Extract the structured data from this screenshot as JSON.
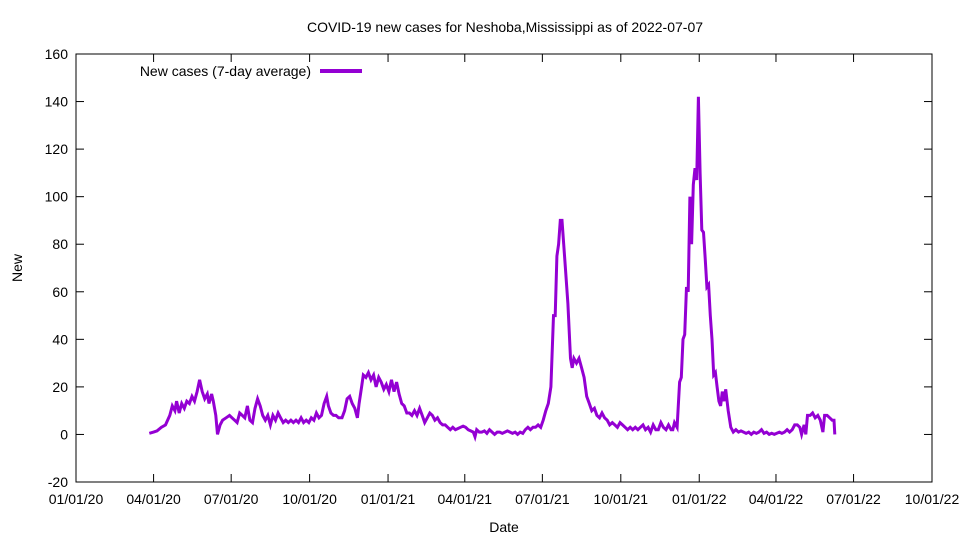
{
  "chart_data": {
    "type": "line",
    "title": "COVID-19 new cases for Neshoba,Mississippi as of 2022-07-07",
    "xlabel": "Date",
    "ylabel": "New",
    "xlim": [
      "2020-01-01",
      "2022-10-01"
    ],
    "ylim": [
      -20,
      160
    ],
    "x_ticks": [
      "2020-01-01",
      "2020-04-01",
      "2020-07-01",
      "2020-10-01",
      "2021-01-01",
      "2021-04-01",
      "2021-07-01",
      "2021-10-01",
      "2022-01-01",
      "2022-04-01",
      "2022-07-01",
      "2022-10-01"
    ],
    "x_tick_labels": [
      "01/01/20",
      "04/01/20",
      "07/01/20",
      "10/01/20",
      "01/01/21",
      "04/01/21",
      "07/01/21",
      "10/01/21",
      "01/01/22",
      "04/01/22",
      "07/01/22",
      "10/01/22"
    ],
    "y_ticks": [
      -20,
      0,
      20,
      40,
      60,
      80,
      100,
      120,
      140,
      160
    ],
    "y_tick_labels": [
      "-20",
      "0",
      "20",
      "40",
      "60",
      "80",
      "100",
      "120",
      "140",
      "160"
    ],
    "grid": false,
    "legend_position": "top-left",
    "series": [
      {
        "name": "New cases (7-day average)",
        "color": "#9400d3",
        "points": [
          [
            "2020-03-27",
            0.5
          ],
          [
            "2020-04-01",
            1
          ],
          [
            "2020-04-05",
            1.5
          ],
          [
            "2020-04-10",
            3
          ],
          [
            "2020-04-15",
            4
          ],
          [
            "2020-04-20",
            8
          ],
          [
            "2020-04-23",
            12
          ],
          [
            "2020-04-26",
            10
          ],
          [
            "2020-04-28",
            14
          ],
          [
            "2020-05-01",
            9
          ],
          [
            "2020-05-04",
            13
          ],
          [
            "2020-05-07",
            11
          ],
          [
            "2020-05-10",
            14
          ],
          [
            "2020-05-13",
            13
          ],
          [
            "2020-05-16",
            16
          ],
          [
            "2020-05-19",
            14
          ],
          [
            "2020-05-22",
            18
          ],
          [
            "2020-05-25",
            23
          ],
          [
            "2020-05-28",
            18
          ],
          [
            "2020-05-31",
            15
          ],
          [
            "2020-06-03",
            17
          ],
          [
            "2020-06-05",
            13
          ],
          [
            "2020-06-08",
            17
          ],
          [
            "2020-06-10",
            14
          ],
          [
            "2020-06-13",
            8
          ],
          [
            "2020-06-15",
            0
          ],
          [
            "2020-06-18",
            4
          ],
          [
            "2020-06-21",
            6
          ],
          [
            "2020-06-25",
            7
          ],
          [
            "2020-06-29",
            8
          ],
          [
            "2020-07-02",
            7
          ],
          [
            "2020-07-05",
            6
          ],
          [
            "2020-07-08",
            5
          ],
          [
            "2020-07-11",
            9
          ],
          [
            "2020-07-14",
            8
          ],
          [
            "2020-07-17",
            7
          ],
          [
            "2020-07-20",
            12
          ],
          [
            "2020-07-23",
            6
          ],
          [
            "2020-07-26",
            5
          ],
          [
            "2020-07-29",
            11
          ],
          [
            "2020-08-01",
            15
          ],
          [
            "2020-08-04",
            12
          ],
          [
            "2020-08-07",
            8
          ],
          [
            "2020-08-10",
            6
          ],
          [
            "2020-08-13",
            8
          ],
          [
            "2020-08-16",
            4
          ],
          [
            "2020-08-19",
            8
          ],
          [
            "2020-08-22",
            6
          ],
          [
            "2020-08-25",
            9
          ],
          [
            "2020-08-28",
            7
          ],
          [
            "2020-08-31",
            5
          ],
          [
            "2020-09-03",
            6
          ],
          [
            "2020-09-06",
            5
          ],
          [
            "2020-09-09",
            6
          ],
          [
            "2020-09-12",
            5
          ],
          [
            "2020-09-15",
            6
          ],
          [
            "2020-09-18",
            5
          ],
          [
            "2020-09-21",
            7
          ],
          [
            "2020-09-24",
            5
          ],
          [
            "2020-09-27",
            6
          ],
          [
            "2020-09-30",
            5
          ],
          [
            "2020-10-03",
            7
          ],
          [
            "2020-10-06",
            6
          ],
          [
            "2020-10-09",
            9
          ],
          [
            "2020-10-12",
            7
          ],
          [
            "2020-10-15",
            8
          ],
          [
            "2020-10-18",
            13
          ],
          [
            "2020-10-21",
            16
          ],
          [
            "2020-10-23",
            12
          ],
          [
            "2020-10-26",
            9
          ],
          [
            "2020-10-29",
            8
          ],
          [
            "2020-11-01",
            8
          ],
          [
            "2020-11-04",
            7
          ],
          [
            "2020-11-08",
            7
          ],
          [
            "2020-11-11",
            10
          ],
          [
            "2020-11-14",
            15
          ],
          [
            "2020-11-17",
            16
          ],
          [
            "2020-11-20",
            13
          ],
          [
            "2020-11-23",
            11
          ],
          [
            "2020-11-26",
            7
          ],
          [
            "2020-11-28",
            13
          ],
          [
            "2020-12-01",
            20
          ],
          [
            "2020-12-03",
            25
          ],
          [
            "2020-12-06",
            24
          ],
          [
            "2020-12-09",
            26
          ],
          [
            "2020-12-12",
            23
          ],
          [
            "2020-12-15",
            25
          ],
          [
            "2020-12-18",
            20
          ],
          [
            "2020-12-21",
            24
          ],
          [
            "2020-12-24",
            22
          ],
          [
            "2020-12-27",
            19
          ],
          [
            "2020-12-30",
            21
          ],
          [
            "2021-01-02",
            18
          ],
          [
            "2021-01-05",
            23
          ],
          [
            "2021-01-08",
            18
          ],
          [
            "2021-01-11",
            22
          ],
          [
            "2021-01-14",
            17
          ],
          [
            "2021-01-17",
            13
          ],
          [
            "2021-01-20",
            12
          ],
          [
            "2021-01-23",
            9
          ],
          [
            "2021-01-26",
            9
          ],
          [
            "2021-01-29",
            8
          ],
          [
            "2021-02-01",
            10
          ],
          [
            "2021-02-04",
            8
          ],
          [
            "2021-02-07",
            11
          ],
          [
            "2021-02-10",
            8
          ],
          [
            "2021-02-13",
            5
          ],
          [
            "2021-02-16",
            7
          ],
          [
            "2021-02-19",
            9
          ],
          [
            "2021-02-22",
            8
          ],
          [
            "2021-02-25",
            6
          ],
          [
            "2021-02-28",
            7
          ],
          [
            "2021-03-03",
            5
          ],
          [
            "2021-03-06",
            4
          ],
          [
            "2021-03-09",
            4
          ],
          [
            "2021-03-12",
            3
          ],
          [
            "2021-03-15",
            2
          ],
          [
            "2021-03-18",
            3
          ],
          [
            "2021-03-21",
            2
          ],
          [
            "2021-03-24",
            2.5
          ],
          [
            "2021-03-27",
            3
          ],
          [
            "2021-03-30",
            3.5
          ],
          [
            "2021-04-02",
            3
          ],
          [
            "2021-04-05",
            2
          ],
          [
            "2021-04-08",
            1.5
          ],
          [
            "2021-04-11",
            1
          ],
          [
            "2021-04-13",
            -1
          ],
          [
            "2021-04-15",
            2
          ],
          [
            "2021-04-18",
            1
          ],
          [
            "2021-04-21",
            1
          ],
          [
            "2021-04-24",
            1.5
          ],
          [
            "2021-04-27",
            0.5
          ],
          [
            "2021-04-30",
            2
          ],
          [
            "2021-05-03",
            1
          ],
          [
            "2021-05-06",
            0
          ],
          [
            "2021-05-09",
            1
          ],
          [
            "2021-05-12",
            1
          ],
          [
            "2021-05-15",
            0.5
          ],
          [
            "2021-05-18",
            1
          ],
          [
            "2021-05-21",
            1.5
          ],
          [
            "2021-05-24",
            1
          ],
          [
            "2021-05-27",
            0.5
          ],
          [
            "2021-05-30",
            1
          ],
          [
            "2021-06-02",
            0
          ],
          [
            "2021-06-05",
            1
          ],
          [
            "2021-06-08",
            0.5
          ],
          [
            "2021-06-11",
            2
          ],
          [
            "2021-06-14",
            3
          ],
          [
            "2021-06-17",
            2
          ],
          [
            "2021-06-20",
            3
          ],
          [
            "2021-06-23",
            3
          ],
          [
            "2021-06-26",
            4
          ],
          [
            "2021-06-29",
            3
          ],
          [
            "2021-07-02",
            6
          ],
          [
            "2021-07-05",
            10
          ],
          [
            "2021-07-08",
            13
          ],
          [
            "2021-07-11",
            20
          ],
          [
            "2021-07-14",
            50
          ],
          [
            "2021-07-16",
            50
          ],
          [
            "2021-07-18",
            75
          ],
          [
            "2021-07-20",
            80
          ],
          [
            "2021-07-22",
            90
          ],
          [
            "2021-07-24",
            90
          ],
          [
            "2021-07-26",
            80
          ],
          [
            "2021-07-28",
            70
          ],
          [
            "2021-07-31",
            55
          ],
          [
            "2021-08-03",
            32
          ],
          [
            "2021-08-05",
            28
          ],
          [
            "2021-08-07",
            32
          ],
          [
            "2021-08-10",
            30
          ],
          [
            "2021-08-13",
            32
          ],
          [
            "2021-08-16",
            28
          ],
          [
            "2021-08-19",
            24
          ],
          [
            "2021-08-22",
            16
          ],
          [
            "2021-08-25",
            13
          ],
          [
            "2021-08-28",
            10
          ],
          [
            "2021-08-31",
            11
          ],
          [
            "2021-09-03",
            8
          ],
          [
            "2021-09-06",
            7
          ],
          [
            "2021-09-09",
            9
          ],
          [
            "2021-09-12",
            7
          ],
          [
            "2021-09-15",
            6
          ],
          [
            "2021-09-18",
            4
          ],
          [
            "2021-09-21",
            5
          ],
          [
            "2021-09-24",
            4
          ],
          [
            "2021-09-27",
            3
          ],
          [
            "2021-09-30",
            5
          ],
          [
            "2021-10-03",
            4
          ],
          [
            "2021-10-06",
            3
          ],
          [
            "2021-10-09",
            2
          ],
          [
            "2021-10-12",
            3
          ],
          [
            "2021-10-15",
            2
          ],
          [
            "2021-10-18",
            3
          ],
          [
            "2021-10-21",
            2
          ],
          [
            "2021-10-24",
            3
          ],
          [
            "2021-10-27",
            4
          ],
          [
            "2021-10-30",
            2
          ],
          [
            "2021-11-02",
            3
          ],
          [
            "2021-11-05",
            1
          ],
          [
            "2021-11-08",
            4
          ],
          [
            "2021-11-11",
            2
          ],
          [
            "2021-11-14",
            2
          ],
          [
            "2021-11-17",
            5
          ],
          [
            "2021-11-20",
            3
          ],
          [
            "2021-11-23",
            2
          ],
          [
            "2021-11-26",
            4
          ],
          [
            "2021-11-29",
            2
          ],
          [
            "2021-12-01",
            2
          ],
          [
            "2021-12-03",
            5
          ],
          [
            "2021-12-06",
            3
          ],
          [
            "2021-12-09",
            22
          ],
          [
            "2021-12-11",
            24
          ],
          [
            "2021-12-13",
            40
          ],
          [
            "2021-12-15",
            42
          ],
          [
            "2021-12-17",
            62
          ],
          [
            "2021-12-19",
            60
          ],
          [
            "2021-12-21",
            100
          ],
          [
            "2021-12-23",
            80
          ],
          [
            "2021-12-25",
            105
          ],
          [
            "2021-12-27",
            112
          ],
          [
            "2021-12-29",
            107
          ],
          [
            "2021-12-31",
            142
          ],
          [
            "2022-01-02",
            110
          ],
          [
            "2022-01-04",
            86
          ],
          [
            "2022-01-06",
            85
          ],
          [
            "2022-01-08",
            74
          ],
          [
            "2022-01-10",
            62
          ],
          [
            "2022-01-12",
            63
          ],
          [
            "2022-01-14",
            50
          ],
          [
            "2022-01-16",
            40
          ],
          [
            "2022-01-18",
            25
          ],
          [
            "2022-01-20",
            26
          ],
          [
            "2022-01-22",
            20
          ],
          [
            "2022-01-24",
            14
          ],
          [
            "2022-01-26",
            12
          ],
          [
            "2022-01-28",
            18
          ],
          [
            "2022-01-30",
            14
          ],
          [
            "2022-02-01",
            19
          ],
          [
            "2022-02-04",
            10
          ],
          [
            "2022-02-07",
            3
          ],
          [
            "2022-02-10",
            1
          ],
          [
            "2022-02-13",
            2
          ],
          [
            "2022-02-16",
            1
          ],
          [
            "2022-02-19",
            1.5
          ],
          [
            "2022-02-22",
            1
          ],
          [
            "2022-02-25",
            0.5
          ],
          [
            "2022-02-28",
            1
          ],
          [
            "2022-03-03",
            0
          ],
          [
            "2022-03-06",
            1
          ],
          [
            "2022-03-09",
            0.5
          ],
          [
            "2022-03-12",
            1
          ],
          [
            "2022-03-15",
            2
          ],
          [
            "2022-03-18",
            0.5
          ],
          [
            "2022-03-21",
            1
          ],
          [
            "2022-03-24",
            0
          ],
          [
            "2022-03-27",
            0.5
          ],
          [
            "2022-03-30",
            0
          ],
          [
            "2022-04-02",
            0.5
          ],
          [
            "2022-04-05",
            1
          ],
          [
            "2022-04-08",
            0.5
          ],
          [
            "2022-04-11",
            1
          ],
          [
            "2022-04-14",
            2
          ],
          [
            "2022-04-17",
            1
          ],
          [
            "2022-04-20",
            2
          ],
          [
            "2022-04-23",
            4
          ],
          [
            "2022-04-26",
            4
          ],
          [
            "2022-04-29",
            3
          ],
          [
            "2022-05-01",
            0
          ],
          [
            "2022-05-04",
            4
          ],
          [
            "2022-05-06",
            0
          ],
          [
            "2022-05-08",
            8
          ],
          [
            "2022-05-11",
            8
          ],
          [
            "2022-05-14",
            9
          ],
          [
            "2022-05-17",
            7
          ],
          [
            "2022-05-20",
            8
          ],
          [
            "2022-05-23",
            6
          ],
          [
            "2022-05-26",
            1
          ],
          [
            "2022-05-28",
            8
          ],
          [
            "2022-05-31",
            8
          ],
          [
            "2022-06-03",
            7
          ],
          [
            "2022-06-06",
            6
          ],
          [
            "2022-06-08",
            6
          ],
          [
            "2022-06-09",
            0
          ]
        ]
      }
    ]
  }
}
